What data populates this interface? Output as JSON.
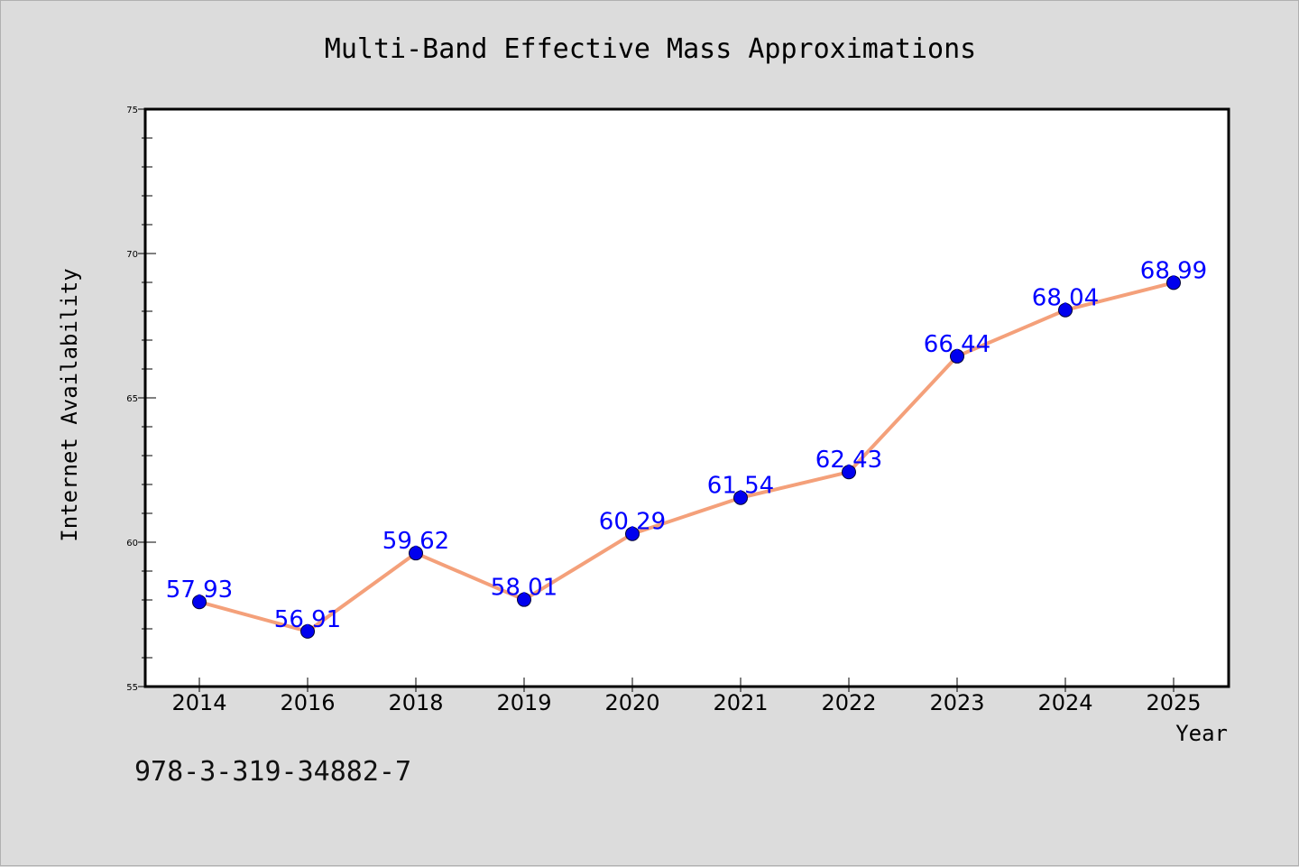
{
  "isbn_text": "978-3-319-34882-7",
  "colors": {
    "line": "#f4a07a",
    "marker": "#0000ee",
    "label": "#0000ff",
    "background": "#dcdcdc",
    "plot_bg": "#ffffff"
  },
  "chart_data": {
    "type": "line",
    "title": "Multi-Band Effective Mass Approximations",
    "xlabel": "Year",
    "ylabel": "Internet Availability",
    "categories": [
      "2014",
      "2016",
      "2018",
      "2019",
      "2020",
      "2021",
      "2022",
      "2023",
      "2024",
      "2025"
    ],
    "values": [
      57.93,
      56.91,
      59.62,
      58.01,
      60.29,
      61.54,
      62.43,
      66.44,
      68.04,
      68.99
    ],
    "data_labels": [
      "57.93",
      "56.91",
      "59.62",
      "58.01",
      "60.29",
      "61.54",
      "62.43",
      "66.44",
      "68.04",
      "68.99"
    ],
    "ylim": [
      55,
      75
    ],
    "yticks": [
      "55",
      "60",
      "65",
      "70",
      "75"
    ],
    "grid": false,
    "legend": "none"
  }
}
